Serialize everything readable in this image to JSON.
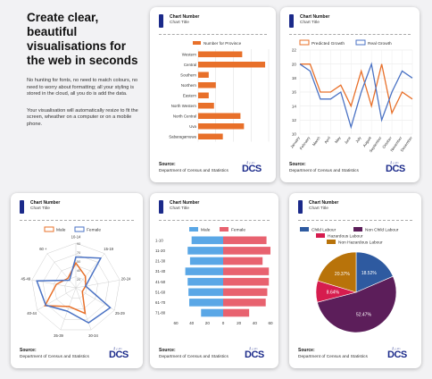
{
  "hero": {
    "title": "Create clear, beautiful visualisations for the web in seconds",
    "para1": "No hunting for fonts, no need to match colours, no need to worry about formatting; all your styling is stored in the cloud, all you do is add the data.",
    "para2": "Your visualisation will automatically resize to fit the screen, wheather on a computer or on a mobile phone."
  },
  "card_common": {
    "number": "Chart Number",
    "title": "Chart Title",
    "source_label": "Source:",
    "source_value": "Department of Census and Statistics",
    "logo_small": "ශ්‍රී ලංකා",
    "logo_big": "DCS"
  },
  "colors": {
    "orange": "#e8702a",
    "blue": "#4a72c4",
    "lightblue": "#5aa7e6",
    "pink": "#e8626f",
    "navy": "#1b2a8a",
    "purple": "#5c1e5a",
    "red": "#d61c4e",
    "gold": "#b8730a",
    "steel": "#2e5aa0"
  },
  "chart_data": [
    {
      "type": "bar",
      "orientation": "horizontal",
      "categories": [
        "Western",
        "Central",
        "Southern",
        "Northern",
        "Eastern",
        "North Western",
        "North Central",
        "Uva",
        "Sabaragamuwa"
      ],
      "series": [
        {
          "name": "Number for Province",
          "values": [
            12.5,
            19,
            3,
            5,
            3,
            4.5,
            12,
            13,
            7
          ]
        }
      ],
      "xlim": [
        0,
        20
      ],
      "xticks": [
        0,
        5,
        10,
        15,
        20
      ]
    },
    {
      "type": "line",
      "categories": [
        "January",
        "February",
        "March",
        "April",
        "May",
        "June",
        "July",
        "August",
        "September",
        "October",
        "November",
        "December"
      ],
      "series": [
        {
          "name": "Predicted Growth",
          "values": [
            20,
            20,
            16,
            16,
            17,
            14,
            19,
            14,
            20,
            13,
            16,
            15
          ]
        },
        {
          "name": "Real Growth",
          "values": [
            20,
            19,
            15,
            15,
            16,
            11,
            16,
            20,
            12,
            16,
            19,
            18
          ]
        }
      ],
      "ylim": [
        10,
        22
      ],
      "yticks": [
        10,
        12,
        14,
        16,
        18,
        20,
        22
      ]
    },
    {
      "type": "radar",
      "categories": [
        "10-14",
        "15-19",
        "20-24",
        "25-29",
        "30-34",
        "35-39",
        "40-44",
        "45-49",
        "60 +"
      ],
      "series": [
        {
          "name": "Male",
          "values": [
            50,
            30,
            20,
            15,
            55,
            40,
            72,
            40,
            25
          ]
        },
        {
          "name": "Female",
          "values": [
            62,
            78,
            20,
            80,
            75,
            50,
            70,
            80,
            20
          ]
        }
      ],
      "rlim": [
        0,
        90
      ],
      "rticks": [
        "20",
        "40",
        "50",
        "70",
        "90"
      ]
    },
    {
      "type": "bar",
      "subtype": "population-pyramid",
      "categories": [
        "1-10",
        "11-20",
        "21-30",
        "31-40",
        "41-50",
        "51-60",
        "61-70",
        "71-80"
      ],
      "series": [
        {
          "name": "Male",
          "values": [
            40,
            45,
            42,
            48,
            45,
            44,
            43,
            28
          ]
        },
        {
          "name": "Female",
          "values": [
            55,
            60,
            50,
            58,
            58,
            56,
            54,
            33
          ]
        }
      ],
      "xticks": [
        "60",
        "40",
        "20",
        "0",
        "20",
        "40",
        "60"
      ]
    },
    {
      "type": "pie",
      "slices": [
        {
          "name": "Child Labour",
          "value": 18.52
        },
        {
          "name": "Non Child Labour",
          "value": 52.47
        },
        {
          "name": "Hazardous Labour",
          "value": 8.64
        },
        {
          "name": "Non Hazardous Labour",
          "value": 20.37
        }
      ],
      "labels": [
        "18.52%",
        "52.47%",
        "8.64%",
        "20.37%"
      ]
    }
  ]
}
